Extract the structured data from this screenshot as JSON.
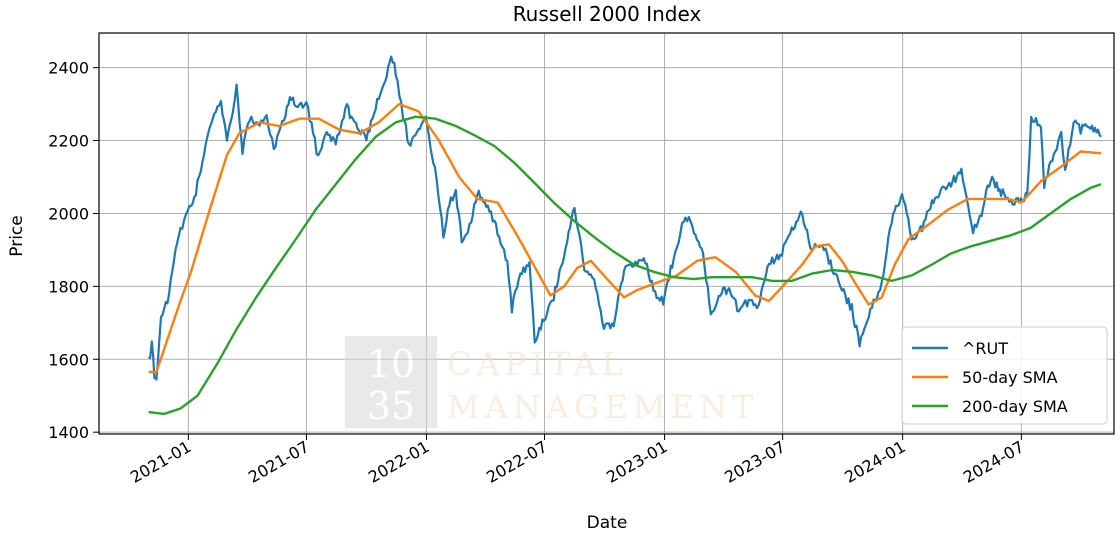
{
  "chart_data": {
    "type": "line",
    "title": "Russell 2000 Index",
    "xlabel": "Date",
    "ylabel": "Price",
    "x_ticks": [
      "2021-01",
      "2021-07",
      "2022-01",
      "2022-07",
      "2023-01",
      "2023-07",
      "2024-01",
      "2024-07"
    ],
    "y_ticks": [
      1400,
      1600,
      1800,
      2000,
      2200,
      2400
    ],
    "xlim": [
      "2020-08-17",
      "2024-11-20"
    ],
    "ylim": [
      1395,
      2495
    ],
    "grid": true,
    "legend_position": "bottom-right",
    "colors": {
      "rut": "#1f77b4",
      "sma50": "#ff7f0e",
      "sma200": "#2ca02c"
    },
    "series": [
      {
        "name": "^RUT",
        "points": [
          [
            "2020-11-01",
            1590
          ],
          [
            "2020-11-06",
            1640
          ],
          [
            "2020-11-10",
            1560
          ],
          [
            "2020-11-13",
            1545
          ],
          [
            "2020-11-20",
            1720
          ],
          [
            "2020-11-30",
            1760
          ],
          [
            "2020-12-10",
            1870
          ],
          [
            "2020-12-20",
            1960
          ],
          [
            "2020-12-31",
            2000
          ],
          [
            "2021-01-10",
            2040
          ],
          [
            "2021-01-25",
            2160
          ],
          [
            "2021-02-05",
            2250
          ],
          [
            "2021-02-12",
            2290
          ],
          [
            "2021-02-20",
            2300
          ],
          [
            "2021-03-01",
            2200
          ],
          [
            "2021-03-10",
            2280
          ],
          [
            "2021-03-16",
            2350
          ],
          [
            "2021-03-25",
            2170
          ],
          [
            "2021-04-05",
            2260
          ],
          [
            "2021-04-20",
            2240
          ],
          [
            "2021-05-01",
            2270
          ],
          [
            "2021-05-12",
            2170
          ],
          [
            "2021-05-25",
            2250
          ],
          [
            "2021-06-08",
            2320
          ],
          [
            "2021-06-20",
            2290
          ],
          [
            "2021-07-01",
            2310
          ],
          [
            "2021-07-19",
            2150
          ],
          [
            "2021-08-01",
            2220
          ],
          [
            "2021-08-15",
            2190
          ],
          [
            "2021-09-01",
            2290
          ],
          [
            "2021-09-15",
            2240
          ],
          [
            "2021-10-01",
            2200
          ],
          [
            "2021-10-15",
            2290
          ],
          [
            "2021-11-01",
            2380
          ],
          [
            "2021-11-08",
            2440
          ],
          [
            "2021-11-15",
            2390
          ],
          [
            "2021-11-26",
            2270
          ],
          [
            "2021-12-05",
            2190
          ],
          [
            "2021-12-15",
            2220
          ],
          [
            "2021-12-31",
            2260
          ],
          [
            "2022-01-07",
            2190
          ],
          [
            "2022-01-14",
            2120
          ],
          [
            "2022-01-27",
            1940
          ],
          [
            "2022-02-05",
            2030
          ],
          [
            "2022-02-15",
            2060
          ],
          [
            "2022-02-24",
            1930
          ],
          [
            "2022-03-08",
            1960
          ],
          [
            "2022-03-20",
            2060
          ],
          [
            "2022-04-05",
            2020
          ],
          [
            "2022-04-20",
            1950
          ],
          [
            "2022-05-05",
            1860
          ],
          [
            "2022-05-12",
            1740
          ],
          [
            "2022-05-25",
            1830
          ],
          [
            "2022-06-08",
            1860
          ],
          [
            "2022-06-16",
            1650
          ],
          [
            "2022-06-30",
            1710
          ],
          [
            "2022-07-15",
            1770
          ],
          [
            "2022-07-31",
            1890
          ],
          [
            "2022-08-16",
            2020
          ],
          [
            "2022-08-31",
            1850
          ],
          [
            "2022-09-15",
            1830
          ],
          [
            "2022-09-30",
            1680
          ],
          [
            "2022-10-15",
            1700
          ],
          [
            "2022-10-31",
            1840
          ],
          [
            "2022-11-15",
            1860
          ],
          [
            "2022-11-30",
            1880
          ],
          [
            "2022-12-15",
            1790
          ],
          [
            "2022-12-30",
            1760
          ],
          [
            "2023-01-15",
            1880
          ],
          [
            "2023-02-02",
            2000
          ],
          [
            "2023-02-15",
            1950
          ],
          [
            "2023-03-01",
            1890
          ],
          [
            "2023-03-13",
            1720
          ],
          [
            "2023-03-25",
            1780
          ],
          [
            "2023-04-10",
            1790
          ],
          [
            "2023-04-25",
            1730
          ],
          [
            "2023-05-10",
            1760
          ],
          [
            "2023-05-25",
            1750
          ],
          [
            "2023-06-10",
            1860
          ],
          [
            "2023-06-30",
            1890
          ],
          [
            "2023-07-15",
            1960
          ],
          [
            "2023-07-31",
            2000
          ],
          [
            "2023-08-15",
            1900
          ],
          [
            "2023-08-31",
            1920
          ],
          [
            "2023-09-15",
            1850
          ],
          [
            "2023-09-30",
            1790
          ],
          [
            "2023-10-15",
            1740
          ],
          [
            "2023-10-27",
            1640
          ],
          [
            "2023-11-10",
            1720
          ],
          [
            "2023-11-30",
            1810
          ],
          [
            "2023-12-15",
            1980
          ],
          [
            "2023-12-31",
            2050
          ],
          [
            "2024-01-17",
            1920
          ],
          [
            "2024-01-31",
            1960
          ],
          [
            "2024-02-15",
            2030
          ],
          [
            "2024-02-29",
            2060
          ],
          [
            "2024-03-15",
            2080
          ],
          [
            "2024-03-31",
            2120
          ],
          [
            "2024-04-18",
            1950
          ],
          [
            "2024-05-01",
            2000
          ],
          [
            "2024-05-15",
            2100
          ],
          [
            "2024-05-31",
            2060
          ],
          [
            "2024-06-15",
            2030
          ],
          [
            "2024-06-28",
            2040
          ],
          [
            "2024-07-10",
            2050
          ],
          [
            "2024-07-16",
            2260
          ],
          [
            "2024-07-31",
            2240
          ],
          [
            "2024-08-05",
            2070
          ],
          [
            "2024-08-15",
            2140
          ],
          [
            "2024-08-31",
            2220
          ],
          [
            "2024-09-06",
            2110
          ],
          [
            "2024-09-19",
            2250
          ],
          [
            "2024-09-30",
            2230
          ],
          [
            "2024-10-15",
            2240
          ],
          [
            "2024-10-31",
            2210
          ]
        ]
      },
      {
        "name": "50-day SMA",
        "points": [
          [
            "2020-11-01",
            1565
          ],
          [
            "2020-11-13",
            1565
          ],
          [
            "2020-12-01",
            1660
          ],
          [
            "2020-12-20",
            1760
          ],
          [
            "2021-01-05",
            1840
          ],
          [
            "2021-02-01",
            2000
          ],
          [
            "2021-03-01",
            2160
          ],
          [
            "2021-03-20",
            2220
          ],
          [
            "2021-04-20",
            2250
          ],
          [
            "2021-05-20",
            2240
          ],
          [
            "2021-06-20",
            2260
          ],
          [
            "2021-07-20",
            2260
          ],
          [
            "2021-08-20",
            2230
          ],
          [
            "2021-09-20",
            2220
          ],
          [
            "2021-10-20",
            2250
          ],
          [
            "2021-11-20",
            2300
          ],
          [
            "2021-12-20",
            2280
          ],
          [
            "2022-01-20",
            2200
          ],
          [
            "2022-02-20",
            2100
          ],
          [
            "2022-03-20",
            2040
          ],
          [
            "2022-04-20",
            2030
          ],
          [
            "2022-05-20",
            1940
          ],
          [
            "2022-06-20",
            1840
          ],
          [
            "2022-07-10",
            1775
          ],
          [
            "2022-07-31",
            1800
          ],
          [
            "2022-08-20",
            1850
          ],
          [
            "2022-09-10",
            1870
          ],
          [
            "2022-10-10",
            1810
          ],
          [
            "2022-10-31",
            1770
          ],
          [
            "2022-11-20",
            1790
          ],
          [
            "2022-12-20",
            1810
          ],
          [
            "2023-01-20",
            1830
          ],
          [
            "2023-02-20",
            1870
          ],
          [
            "2023-03-20",
            1880
          ],
          [
            "2023-04-20",
            1840
          ],
          [
            "2023-05-20",
            1775
          ],
          [
            "2023-06-10",
            1760
          ],
          [
            "2023-07-01",
            1800
          ],
          [
            "2023-07-31",
            1860
          ],
          [
            "2023-08-20",
            1910
          ],
          [
            "2023-09-10",
            1915
          ],
          [
            "2023-09-30",
            1870
          ],
          [
            "2023-10-20",
            1810
          ],
          [
            "2023-11-10",
            1750
          ],
          [
            "2023-11-30",
            1770
          ],
          [
            "2023-12-20",
            1860
          ],
          [
            "2024-01-10",
            1930
          ],
          [
            "2024-02-10",
            1970
          ],
          [
            "2024-03-10",
            2010
          ],
          [
            "2024-04-10",
            2040
          ],
          [
            "2024-05-10",
            2040
          ],
          [
            "2024-06-10",
            2040
          ],
          [
            "2024-07-01",
            2030
          ],
          [
            "2024-08-01",
            2090
          ],
          [
            "2024-09-01",
            2130
          ],
          [
            "2024-09-30",
            2170
          ],
          [
            "2024-10-31",
            2165
          ]
        ]
      },
      {
        "name": "200-day SMA",
        "points": [
          [
            "2020-11-01",
            1455
          ],
          [
            "2020-11-25",
            1450
          ],
          [
            "2020-12-20",
            1465
          ],
          [
            "2021-01-15",
            1500
          ],
          [
            "2021-02-15",
            1590
          ],
          [
            "2021-03-15",
            1680
          ],
          [
            "2021-04-15",
            1770
          ],
          [
            "2021-05-15",
            1850
          ],
          [
            "2021-06-15",
            1930
          ],
          [
            "2021-07-15",
            2010
          ],
          [
            "2021-08-15",
            2080
          ],
          [
            "2021-09-15",
            2150
          ],
          [
            "2021-10-15",
            2210
          ],
          [
            "2021-11-15",
            2250
          ],
          [
            "2021-12-15",
            2265
          ],
          [
            "2022-01-15",
            2260
          ],
          [
            "2022-02-15",
            2240
          ],
          [
            "2022-03-15",
            2215
          ],
          [
            "2022-04-15",
            2185
          ],
          [
            "2022-05-15",
            2140
          ],
          [
            "2022-06-15",
            2085
          ],
          [
            "2022-07-15",
            2030
          ],
          [
            "2022-08-15",
            1980
          ],
          [
            "2022-09-15",
            1935
          ],
          [
            "2022-10-15",
            1895
          ],
          [
            "2022-11-15",
            1860
          ],
          [
            "2022-12-15",
            1840
          ],
          [
            "2023-01-15",
            1825
          ],
          [
            "2023-02-15",
            1820
          ],
          [
            "2023-03-15",
            1825
          ],
          [
            "2023-04-15",
            1825
          ],
          [
            "2023-05-15",
            1825
          ],
          [
            "2023-06-15",
            1815
          ],
          [
            "2023-07-15",
            1815
          ],
          [
            "2023-08-15",
            1835
          ],
          [
            "2023-09-15",
            1845
          ],
          [
            "2023-10-15",
            1840
          ],
          [
            "2023-11-15",
            1830
          ],
          [
            "2023-12-15",
            1815
          ],
          [
            "2024-01-15",
            1830
          ],
          [
            "2024-02-15",
            1860
          ],
          [
            "2024-03-15",
            1890
          ],
          [
            "2024-04-15",
            1910
          ],
          [
            "2024-05-15",
            1925
          ],
          [
            "2024-06-15",
            1940
          ],
          [
            "2024-07-15",
            1960
          ],
          [
            "2024-08-15",
            2000
          ],
          [
            "2024-09-15",
            2040
          ],
          [
            "2024-10-15",
            2070
          ],
          [
            "2024-10-31",
            2080
          ]
        ]
      }
    ]
  },
  "watermark": {
    "number_top": "10",
    "number_bottom": "35",
    "line1": "CAPITAL",
    "line2": "MANAGEMENT"
  }
}
